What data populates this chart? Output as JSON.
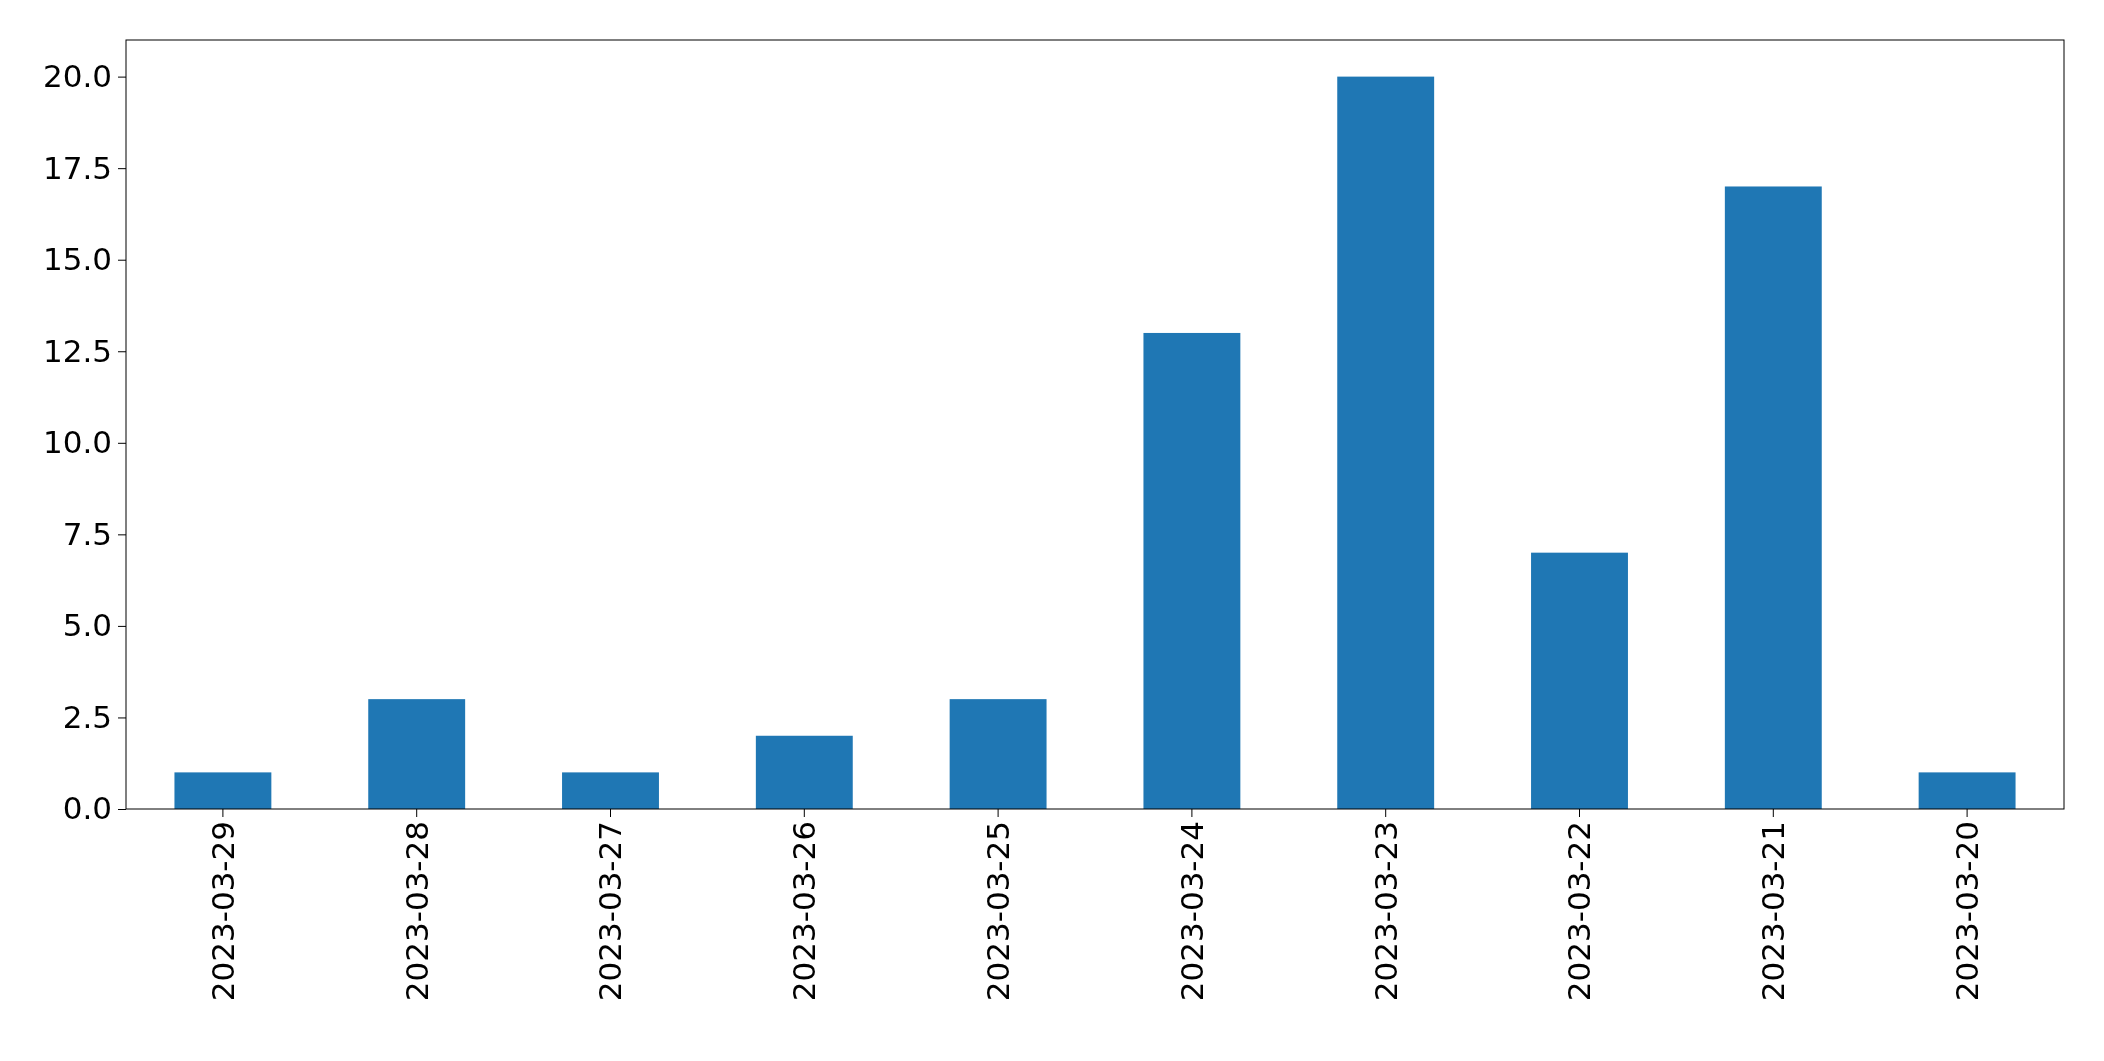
{
  "chart_data": {
    "type": "bar",
    "categories": [
      "2023-03-29",
      "2023-03-28",
      "2023-03-27",
      "2023-03-26",
      "2023-03-25",
      "2023-03-24",
      "2023-03-23",
      "2023-03-22",
      "2023-03-21",
      "2023-03-20"
    ],
    "values": [
      1,
      3,
      1,
      2,
      3,
      13,
      20,
      7,
      17,
      1
    ],
    "color": "#1f77b4",
    "ylim": [
      0,
      21
    ],
    "yticks": [
      {
        "value": 0,
        "label": "0.0"
      },
      {
        "value": 2.5,
        "label": "2.5"
      },
      {
        "value": 5,
        "label": "5.0"
      },
      {
        "value": 7.5,
        "label": "7.5"
      },
      {
        "value": 10,
        "label": "10.0"
      },
      {
        "value": 12.5,
        "label": "12.5"
      },
      {
        "value": 15,
        "label": "15.0"
      },
      {
        "value": 17.5,
        "label": "17.5"
      },
      {
        "value": 20,
        "label": "20.0"
      }
    ],
    "grid": false
  }
}
